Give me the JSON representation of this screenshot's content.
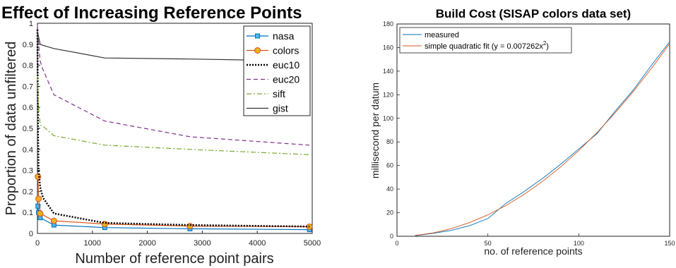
{
  "chart_data": [
    {
      "type": "line",
      "title": "Effect of Increasing Reference Points",
      "xlabel": "Number of reference point pairs",
      "ylabel": "Proportion of data unfiltered",
      "xlim": [
        0,
        5000
      ],
      "ylim": [
        0,
        1
      ],
      "xticks": [
        "0",
        "1000",
        "2000",
        "3000",
        "4000",
        "5000"
      ],
      "yticks": [
        "0",
        "0.1",
        "0.2",
        "0.3",
        "0.4",
        "0.5",
        "0.6",
        "0.7",
        "0.8",
        "0.9",
        "1"
      ],
      "grid": false,
      "legend_position": "top-right",
      "series": [
        {
          "name": "nasa",
          "color": "#0072BD",
          "style": "solid",
          "marker": "square",
          "x": [
            10,
            20,
            50,
            300,
            1225,
            2775,
            4950
          ],
          "y": [
            0.13,
            0.1,
            0.075,
            0.04,
            0.028,
            0.022,
            0.018
          ]
        },
        {
          "name": "colors",
          "color": "#D95319",
          "style": "solid",
          "marker": "circle",
          "x": [
            10,
            20,
            50,
            300,
            1225,
            2775,
            4950
          ],
          "y": [
            0.27,
            0.165,
            0.095,
            0.06,
            0.045,
            0.035,
            0.032
          ]
        },
        {
          "name": "euc10",
          "color": "#000000",
          "style": "dotted",
          "marker": "none",
          "x": [
            0,
            10,
            20,
            50,
            100,
            300,
            1225,
            2775,
            4950
          ],
          "y": [
            0.97,
            0.48,
            0.3,
            0.22,
            0.17,
            0.095,
            0.05,
            0.04,
            0.033
          ]
        },
        {
          "name": "euc20",
          "color": "#7E2F8E",
          "style": "dashed",
          "marker": "none",
          "x": [
            0,
            20,
            50,
            100,
            300,
            1225,
            2775,
            4950
          ],
          "y": [
            0.99,
            0.9,
            0.82,
            0.78,
            0.66,
            0.535,
            0.46,
            0.42
          ]
        },
        {
          "name": "sift",
          "color": "#77AC30",
          "style": "dashdot",
          "marker": "none",
          "x": [
            0,
            20,
            50,
            100,
            300,
            1225,
            2775,
            4950
          ],
          "y": [
            0.75,
            0.6,
            0.515,
            0.51,
            0.465,
            0.42,
            0.4,
            0.375
          ]
        },
        {
          "name": "gist",
          "color": "#333333",
          "style": "solid",
          "marker": "none",
          "x": [
            0,
            50,
            100,
            300,
            1225,
            2775,
            4950
          ],
          "y": [
            0.96,
            0.9,
            0.895,
            0.88,
            0.835,
            0.83,
            0.82
          ]
        }
      ]
    },
    {
      "type": "line",
      "title": "Build Cost (SISAP colors data set)",
      "xlabel": "no. of reference points",
      "ylabel": "millisecond per datum",
      "xlim": [
        0,
        150
      ],
      "ylim": [
        0,
        180
      ],
      "xticks": [
        "0",
        "50",
        "100",
        "150"
      ],
      "yticks": [
        "0",
        "20",
        "40",
        "60",
        "80",
        "100",
        "120",
        "140",
        "160",
        "180"
      ],
      "grid": false,
      "legend_position": "top-left",
      "series": [
        {
          "name": "measured",
          "color": "#0072BD",
          "style": "solid",
          "x": [
            10,
            20,
            30,
            40,
            50,
            60,
            70,
            80,
            90,
            100,
            110,
            120,
            130,
            140,
            150
          ],
          "y": [
            0.5,
            2.5,
            5,
            9,
            15,
            28,
            38,
            49,
            61,
            74,
            87,
            106,
            124,
            145,
            165
          ]
        },
        {
          "name": "simple quadratic fit (y = 0.007262x",
          "name_sup": "2",
          "name_tail": ")",
          "color": "#D95319",
          "style": "solid",
          "x": [
            10,
            20,
            30,
            40,
            50,
            60,
            70,
            80,
            90,
            100,
            110,
            120,
            130,
            140,
            150
          ],
          "y": [
            0.7,
            2.9,
            6.5,
            11.6,
            18.2,
            26.1,
            35.6,
            46.5,
            58.8,
            72.6,
            87.9,
            104.6,
            122.7,
            142.3,
            163.4
          ]
        }
      ]
    }
  ]
}
